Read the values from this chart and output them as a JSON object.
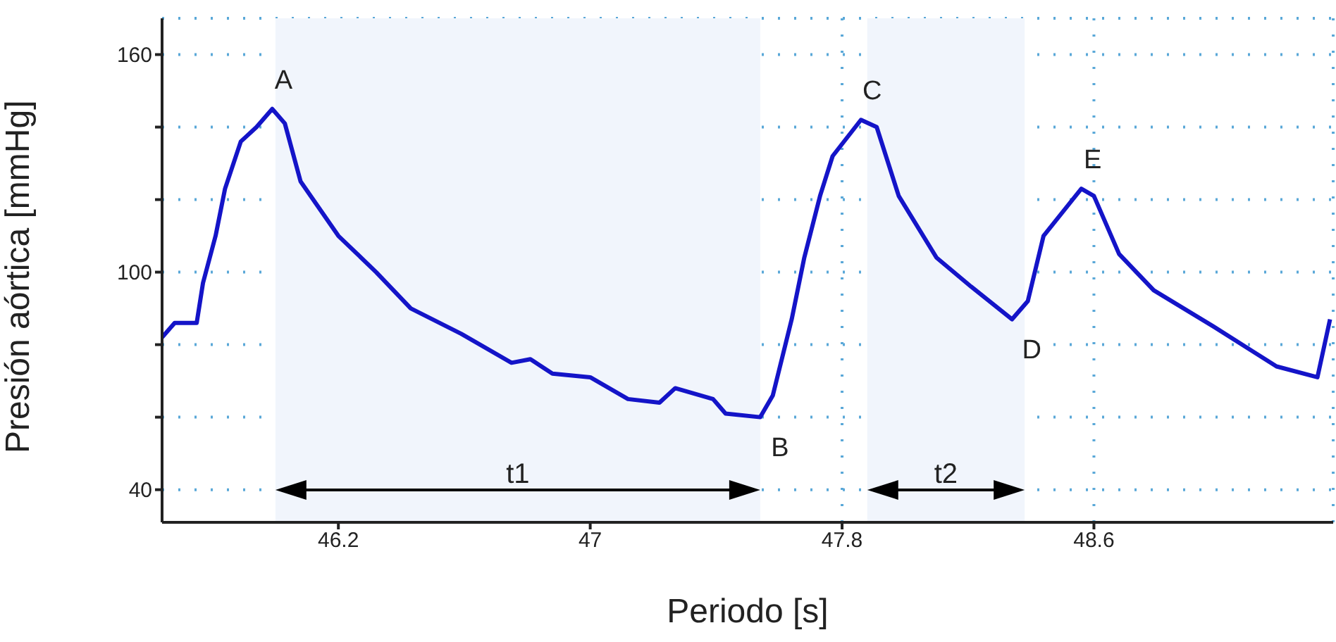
{
  "chart_data": {
    "type": "line",
    "xlabel": "Periodo [s]",
    "ylabel": "Presión aórtica [mmHg]",
    "xlim": [
      45.64,
      49.36
    ],
    "ylim": [
      31,
      170
    ],
    "xticks": [
      46.2,
      47,
      47.8,
      48.6
    ],
    "yticks": [
      40,
      {
        "value": 60,
        "label": null
      },
      {
        "value": 80,
        "label": null
      },
      100,
      {
        "value": 120,
        "label": null
      },
      {
        "value": 140,
        "label": null
      },
      160
    ],
    "grid": true,
    "line_style": "solid",
    "marker": "none",
    "x": [
      45.64,
      45.68,
      45.75,
      45.77,
      45.81,
      45.84,
      45.89,
      45.94,
      45.99,
      46.03,
      46.08,
      46.12,
      46.2,
      46.32,
      46.43,
      46.59,
      46.75,
      46.81,
      46.88,
      47.0,
      47.12,
      47.22,
      47.27,
      47.39,
      47.43,
      47.54,
      47.58,
      47.64,
      47.68,
      47.73,
      47.77,
      47.86,
      47.91,
      47.98,
      48.1,
      48.21,
      48.34,
      48.39,
      48.44,
      48.56,
      48.6,
      48.68,
      48.79,
      48.98,
      49.18,
      49.31,
      49.35
    ],
    "series": [
      {
        "color": "#1414c8",
        "values": [
          82,
          86,
          86,
          97,
          110,
          123,
          136,
          140,
          145,
          141,
          125,
          120,
          110,
          100,
          90,
          83,
          75,
          76,
          72,
          71,
          65,
          64,
          68,
          65,
          61,
          60,
          66,
          87,
          104,
          121,
          132,
          142,
          140,
          121,
          104,
          96,
          87,
          92,
          110,
          123,
          121,
          105,
          95,
          85,
          74,
          71,
          87
        ]
      }
    ],
    "annotations": [
      {
        "text": "A",
        "x": 45.99,
        "y": 145
      },
      {
        "text": "B",
        "x": 47.54,
        "y": 60
      },
      {
        "text": "C",
        "x": 47.86,
        "y": 142
      },
      {
        "text": "D",
        "x": 48.34,
        "y": 87
      },
      {
        "text": "E",
        "x": 48.56,
        "y": 123
      }
    ],
    "bands": [
      {
        "axis": "x",
        "from": 46.0,
        "to": 47.54,
        "label": "t1",
        "color": "#f1f5fc"
      },
      {
        "axis": "x",
        "from": 47.88,
        "to": 48.38,
        "label": "t2",
        "color": "#f1f5fc"
      }
    ]
  }
}
